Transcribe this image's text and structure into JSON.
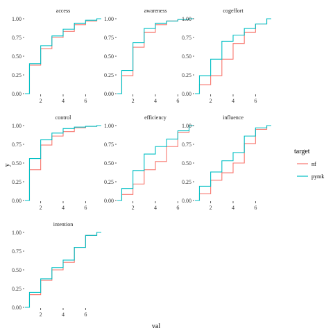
{
  "chart_data": {
    "type": "line",
    "subtype": "step-ecdf-facets",
    "xlabel": "val",
    "ylabel": "y",
    "xlim": [
      0.6,
      7.4
    ],
    "ylim": [
      0,
      1
    ],
    "x_ticks": [
      2,
      4,
      6
    ],
    "x_tick_labels": [
      "2",
      "4",
      "6"
    ],
    "y_ticks": [
      0,
      0.25,
      0.5,
      0.75,
      1
    ],
    "y_tick_labels": [
      "0.00",
      "0.25",
      "0.50",
      "0.75",
      "1.00"
    ],
    "grid": false,
    "legend": {
      "title": "target",
      "position": "right",
      "entries": [
        {
          "name": "nf",
          "color": "#F8766D"
        },
        {
          "name": "pymk",
          "color": "#00BFC4"
        }
      ]
    },
    "x": [
      1,
      2,
      3,
      4,
      5,
      6,
      7
    ],
    "facets": [
      {
        "name": "access",
        "series": [
          {
            "name": "nf",
            "values": [
              0.38,
              0.6,
              0.75,
              0.83,
              0.92,
              0.97,
              1.0
            ]
          },
          {
            "name": "pymk",
            "values": [
              0.4,
              0.64,
              0.77,
              0.86,
              0.94,
              0.98,
              1.0
            ]
          }
        ]
      },
      {
        "name": "awareness",
        "series": [
          {
            "name": "nf",
            "values": [
              0.24,
              0.62,
              0.82,
              0.92,
              0.97,
              0.99,
              1.0
            ]
          },
          {
            "name": "pymk",
            "values": [
              0.31,
              0.68,
              0.87,
              0.94,
              0.97,
              0.99,
              1.0
            ]
          }
        ]
      },
      {
        "name": "cogeffort",
        "series": [
          {
            "name": "nf",
            "values": [
              0.12,
              0.24,
              0.46,
              0.67,
              0.82,
              0.93,
              1.0
            ]
          },
          {
            "name": "pymk",
            "values": [
              0.24,
              0.46,
              0.7,
              0.78,
              0.87,
              0.93,
              1.0
            ]
          }
        ]
      },
      {
        "name": "control",
        "series": [
          {
            "name": "nf",
            "values": [
              0.41,
              0.74,
              0.86,
              0.92,
              0.97,
              0.99,
              1.0
            ]
          },
          {
            "name": "pymk",
            "values": [
              0.56,
              0.81,
              0.9,
              0.96,
              0.98,
              0.99,
              1.0
            ]
          }
        ]
      },
      {
        "name": "efficiency",
        "series": [
          {
            "name": "nf",
            "values": [
              0.08,
              0.22,
              0.41,
              0.52,
              0.72,
              0.91,
              1.0
            ]
          },
          {
            "name": "pymk",
            "values": [
              0.16,
              0.4,
              0.62,
              0.72,
              0.82,
              0.93,
              1.0
            ]
          }
        ]
      },
      {
        "name": "influence",
        "series": [
          {
            "name": "nf",
            "values": [
              0.09,
              0.27,
              0.37,
              0.5,
              0.76,
              0.95,
              1.0
            ]
          },
          {
            "name": "pymk",
            "values": [
              0.19,
              0.38,
              0.53,
              0.64,
              0.86,
              0.97,
              1.0
            ]
          }
        ]
      },
      {
        "name": "intention",
        "series": [
          {
            "name": "nf",
            "values": [
              0.17,
              0.36,
              0.5,
              0.6,
              0.8,
              0.96,
              1.0
            ]
          },
          {
            "name": "pymk",
            "values": [
              0.2,
              0.38,
              0.53,
              0.63,
              0.8,
              0.96,
              1.0
            ]
          }
        ]
      }
    ]
  }
}
